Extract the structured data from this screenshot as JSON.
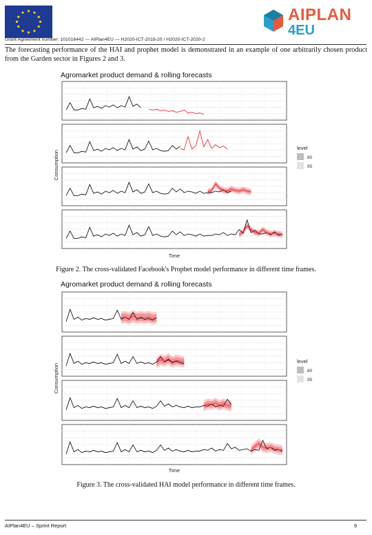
{
  "header": {
    "grant_text": "Grant Agreement number: 101016442 — AIPlan4EU — H2020-ICT-2018-20 / H2020-ICT-2020-2",
    "logo_line1": "AIPLAN",
    "logo_line2": "4EU"
  },
  "intro_text": "The forecasting performance of the HAI and prophet model is demonstrated in an example of one arbitrarily chosen product from the Garden sector in Figures 2 and 3.",
  "figures": [
    {
      "caption": "Figure 2. The cross-validated Facebook's Prophet model performance in different time frames."
    },
    {
      "caption": "Figure 3. The cross-validated HAI model performance in different time frames."
    }
  ],
  "chart_data": [
    {
      "type": "line",
      "title": "Agromarket product demand & rolling forecasts",
      "xlabel": "Time",
      "ylabel": "Consumption",
      "legend": {
        "title": "level",
        "items": [
          "80",
          "95"
        ],
        "colors": [
          "#bdbdbd",
          "#e3e3e3"
        ],
        "placement": "right"
      },
      "grid": true,
      "colors": {
        "actual": "#000000",
        "forecast": "#e8303a",
        "band80": "#f28b8f",
        "band95": "#f9c4c6"
      },
      "actual": [
        3,
        4,
        3,
        3,
        3.2,
        3.1,
        4.5,
        3.3,
        3.5,
        3.2,
        3.6,
        3.4,
        3.7,
        3.3,
        3.6,
        3.4,
        4.8,
        3.5,
        3.8,
        3.3,
        3.5,
        4.6,
        3.4,
        3.6,
        3.3,
        3.2,
        3.3,
        4,
        3.5,
        3.9,
        3.4,
        3.6,
        3.5,
        3.3,
        3.6,
        3.3,
        3.4,
        3.4,
        3.6,
        3.5,
        3.8,
        3.4,
        3.6,
        3.5,
        4.2,
        3.7,
        5.5,
        3.8,
        4.1,
        3.6,
        3.6,
        3.8,
        3.5,
        3.9,
        3.4,
        3.6
      ],
      "panels": [
        {
          "actual_end": 19,
          "forecast_start": 21,
          "forecast": [
            3.1,
            3.0,
            3.1,
            2.9,
            3.0,
            2.8,
            2.9,
            2.7,
            2.8,
            3.0,
            2.6,
            2.7,
            2.5,
            2.6,
            2.4
          ],
          "band80": 0.0,
          "band95": 0.0
        },
        {
          "actual_end": 29,
          "forecast_start": 29,
          "forecast": [
            3.6,
            3.4,
            5.2,
            3.5,
            4.0,
            6.0,
            3.8,
            4.8,
            3.6,
            4.1,
            3.7,
            3.9,
            3.5
          ],
          "band80": 0.0,
          "band95": 0.0
        },
        {
          "actual_end": 42,
          "forecast_start": 36,
          "forecast": [
            3.5,
            3.7,
            4.6,
            4.0,
            3.7,
            3.6,
            3.9,
            3.7,
            3.6,
            3.8,
            3.6,
            3.5
          ],
          "band80": 0.25,
          "band95": 0.45
        },
        {
          "actual_end": 55,
          "forecast_start": 44,
          "forecast": [
            3.5,
            3.9,
            4.7,
            4.2,
            3.8,
            3.7,
            4.2,
            3.8,
            3.6,
            3.7,
            3.6,
            3.5
          ],
          "band80": 0.25,
          "band95": 0.45
        }
      ]
    },
    {
      "type": "line",
      "title": "Agromarket product demand & rolling forecasts",
      "xlabel": "Time",
      "ylabel": "Consumption",
      "legend": {
        "title": "level",
        "items": [
          "80",
          "95"
        ],
        "colors": [
          "#bdbdbd",
          "#e3e3e3"
        ],
        "placement": "right"
      },
      "grid": true,
      "colors": {
        "actual": "#000000",
        "forecast": "#e8303a",
        "band80": "#f28b8f",
        "band95": "#f9c4c6"
      },
      "actual": [
        3,
        4.6,
        3.3,
        3.6,
        3.2,
        3.4,
        3.3,
        3.5,
        3.3,
        3.4,
        3.2,
        3.3,
        3.4,
        4.5,
        3.3,
        3.6,
        3.3,
        4.2,
        3.3,
        3.5,
        3.3,
        3.4,
        3.2,
        3.5,
        4.2,
        3.5,
        3.8,
        3.4,
        3.6,
        3.4,
        3.3,
        3.5,
        3.3,
        3.4,
        3.4,
        3.6,
        3.5,
        3.8,
        3.4,
        3.6,
        3.5,
        4.4,
        3.7,
        3.9,
        3.5,
        3.6,
        3.7,
        3.4,
        3.6,
        3.5,
        4.8,
        3.7,
        3.9,
        3.5,
        3.6,
        3.4
      ],
      "panels": [
        {
          "actual_end": 23,
          "forecast_start": 14,
          "forecast": [
            3.5,
            3.6,
            3.4,
            3.7,
            3.5,
            3.6,
            3.5,
            3.6,
            3.4,
            3.5
          ],
          "band80": 0.5,
          "band95": 0.8
        },
        {
          "actual_end": 30,
          "forecast_start": 23,
          "forecast": [
            3.4,
            3.8,
            3.6,
            3.9,
            3.5,
            3.7,
            3.6,
            3.5
          ],
          "band80": 0.45,
          "band95": 0.75
        },
        {
          "actual_end": 42,
          "forecast_start": 35,
          "forecast": [
            3.5,
            3.8,
            3.7,
            3.9,
            3.6,
            3.8,
            3.6,
            3.5
          ],
          "band80": 0.4,
          "band95": 0.7
        },
        {
          "actual_end": 55,
          "forecast_start": 47,
          "forecast": [
            3.5,
            4.0,
            4.4,
            3.9,
            3.8,
            3.9,
            3.7,
            3.6,
            3.5
          ],
          "band80": 0.35,
          "band95": 0.65
        }
      ]
    }
  ],
  "footer": {
    "left": "AIPlan4EU – Sprint Report",
    "right": "9"
  }
}
